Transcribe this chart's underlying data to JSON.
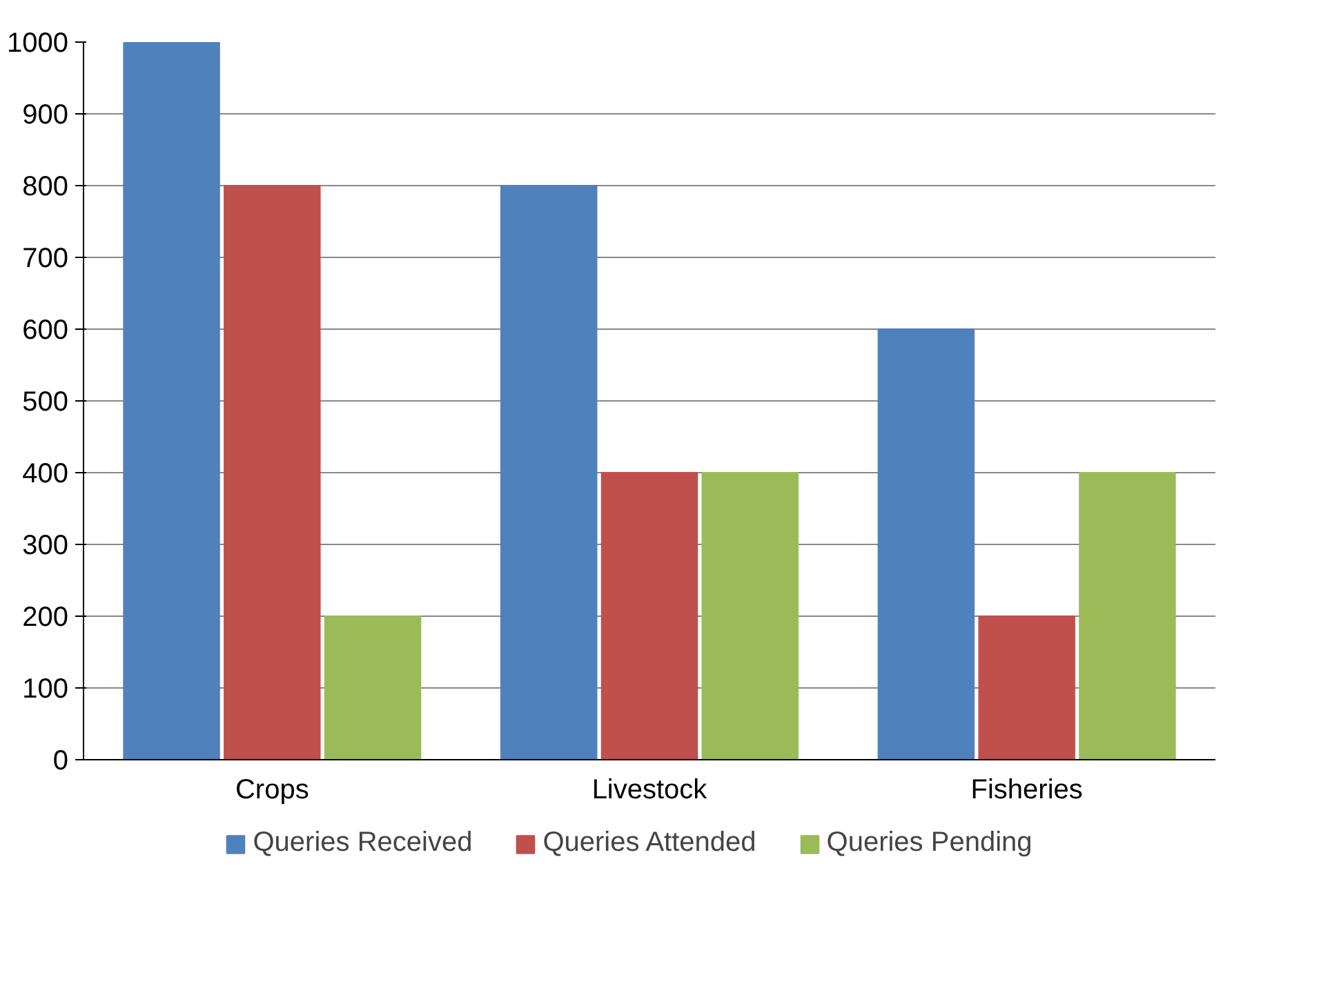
{
  "chart_data": {
    "type": "bar",
    "categories": [
      "Crops",
      "Livestock",
      "Fisheries"
    ],
    "series": [
      {
        "name": "Queries Received",
        "color": "#4f81bd",
        "values": [
          1000,
          800,
          600
        ]
      },
      {
        "name": "Queries Attended",
        "color": "#c0504d",
        "values": [
          800,
          400,
          200
        ]
      },
      {
        "name": "Queries Pending",
        "color": "#9bbb59",
        "values": [
          200,
          400,
          400
        ]
      }
    ],
    "ylim": [
      0,
      1000
    ],
    "yticks": [
      0,
      100,
      200,
      300,
      400,
      500,
      600,
      700,
      800,
      900,
      1000
    ],
    "grid": "y",
    "legend": "bottom"
  }
}
